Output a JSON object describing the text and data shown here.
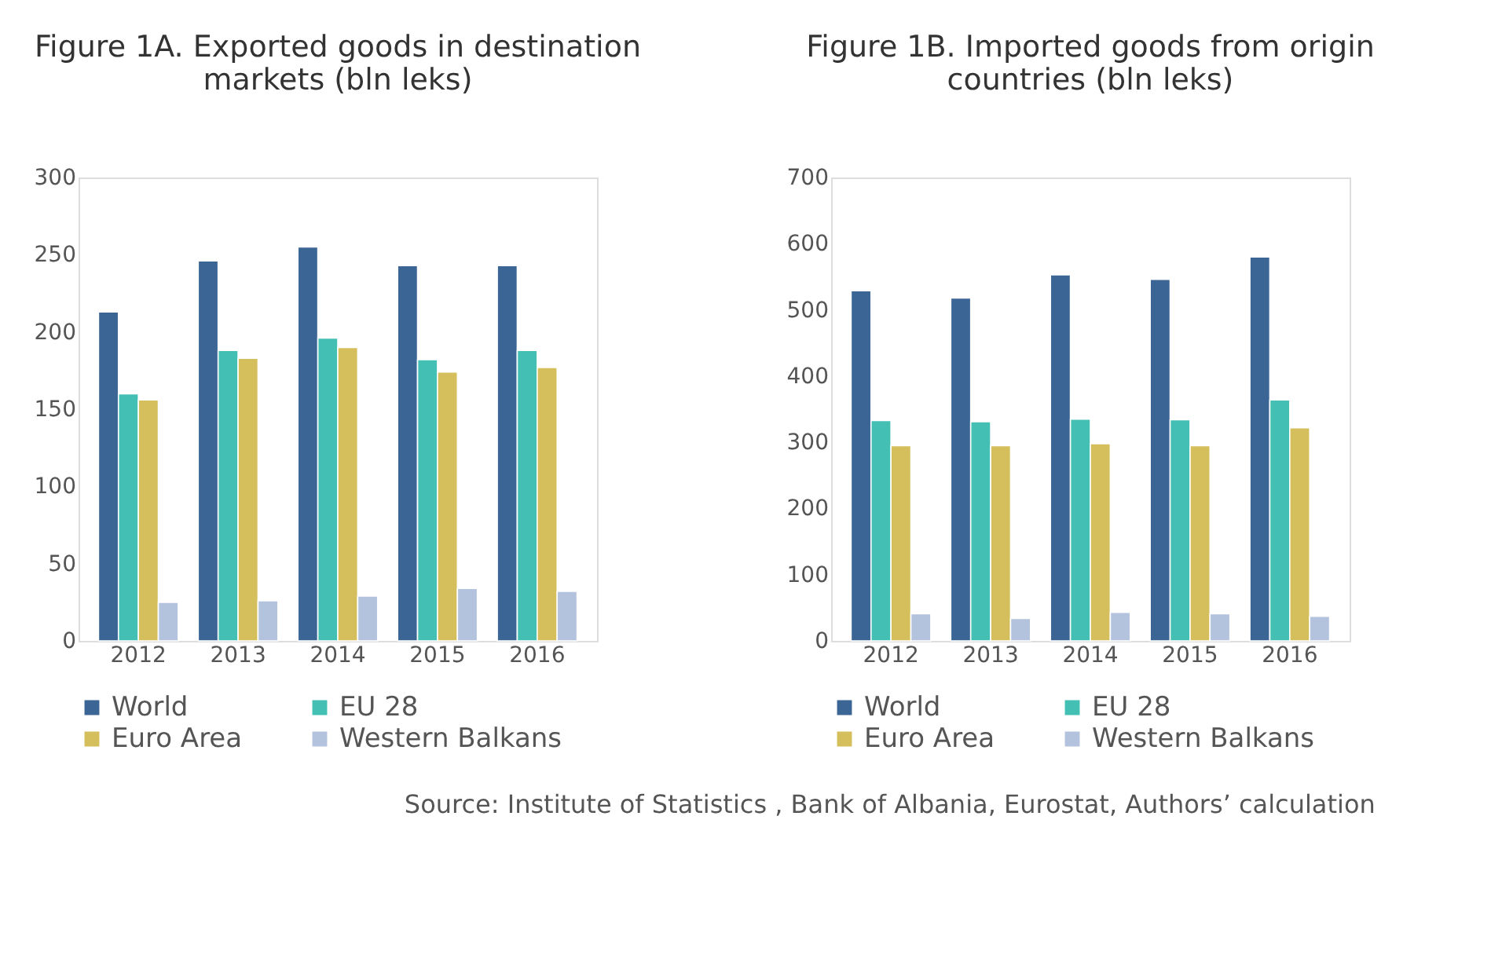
{
  "chart_data": [
    {
      "type": "bar",
      "title": "Figure 1A. Exported goods in destination markets (bln leks)",
      "categories": [
        "2012",
        "2013",
        "2014",
        "2015",
        "2016"
      ],
      "series": [
        {
          "name": "World",
          "color": "#3a6595",
          "values": [
            213,
            246,
            255,
            243,
            243
          ]
        },
        {
          "name": "EU 28",
          "color": "#44bfb4",
          "values": [
            160,
            188,
            196,
            182,
            188
          ]
        },
        {
          "name": "Euro Area",
          "color": "#d4bf5c",
          "values": [
            156,
            183,
            190,
            174,
            177
          ]
        },
        {
          "name": "Western Balkans",
          "color": "#b4c3dd",
          "values": [
            25,
            26,
            29,
            34,
            32
          ]
        }
      ],
      "ylim": [
        0,
        300
      ],
      "yticks": [
        0,
        50,
        100,
        150,
        200,
        250,
        300
      ],
      "grid": false,
      "legend": "bottom"
    },
    {
      "type": "bar",
      "title": "Figure 1B. Imported goods from origin countries (bln leks)",
      "categories": [
        "2012",
        "2013",
        "2014",
        "2015",
        "2016"
      ],
      "series": [
        {
          "name": "World",
          "color": "#3a6595",
          "values": [
            529,
            518,
            553,
            546,
            580
          ]
        },
        {
          "name": "EU 28",
          "color": "#44bfb4",
          "values": [
            333,
            331,
            335,
            334,
            364
          ]
        },
        {
          "name": "Euro Area",
          "color": "#d4bf5c",
          "values": [
            295,
            295,
            298,
            295,
            322
          ]
        },
        {
          "name": "Western Balkans",
          "color": "#b4c3dd",
          "values": [
            41,
            34,
            43,
            41,
            37
          ]
        }
      ],
      "ylim": [
        0,
        700
      ],
      "yticks": [
        0,
        100,
        200,
        300,
        400,
        500,
        600,
        700
      ],
      "grid": false,
      "legend": "bottom",
      "annotations": [
        "Source: Institute of Statistics , Bank of Albania, Eurostat, Authors’ calculation"
      ]
    }
  ]
}
